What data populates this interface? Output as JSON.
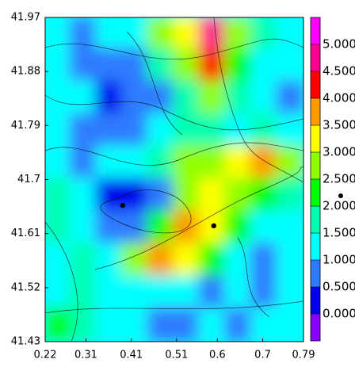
{
  "chart_data": {
    "type": "contour",
    "xlim": [
      0.22,
      0.79
    ],
    "ylim": [
      41.43,
      41.97
    ],
    "xticks": [
      0.22,
      0.31,
      0.41,
      0.51,
      0.6,
      0.7,
      0.79
    ],
    "yticks": [
      41.43,
      41.52,
      41.61,
      41.7,
      41.79,
      41.88,
      41.97
    ],
    "z": [
      [
        1.2,
        0.8,
        1.0,
        1.3,
        2.5,
        3.2,
        4.5,
        2.5,
        1.8,
        1.2
      ],
      [
        1.0,
        0.6,
        0.8,
        0.7,
        1.5,
        2.5,
        4.0,
        2.2,
        1.3,
        1.0
      ],
      [
        1.3,
        1.0,
        0.4,
        0.6,
        0.9,
        1.5,
        2.5,
        1.8,
        1.2,
        0.8
      ],
      [
        1.0,
        0.7,
        0.5,
        0.8,
        1.2,
        1.8,
        1.5,
        1.4,
        1.6,
        1.3
      ],
      [
        1.2,
        0.9,
        1.1,
        1.4,
        1.8,
        2.5,
        2.8,
        3.0,
        3.5,
        2.8
      ],
      [
        1.5,
        1.0,
        0.3,
        0.3,
        0.6,
        2.5,
        3.2,
        2.5,
        2.0,
        1.5
      ],
      [
        1.8,
        1.3,
        0.5,
        0.8,
        2.0,
        3.5,
        3.2,
        2.0,
        1.3,
        1.0
      ],
      [
        1.3,
        1.5,
        1.2,
        2.8,
        3.6,
        3.0,
        2.0,
        1.2,
        0.8,
        1.0
      ],
      [
        1.0,
        1.8,
        1.2,
        1.0,
        1.3,
        1.1,
        0.7,
        1.0,
        0.6,
        1.0
      ],
      [
        2.0,
        1.5,
        1.0,
        1.0,
        0.5,
        0.9,
        1.0,
        0.8,
        1.3,
        1.2
      ]
    ],
    "levels": [
      {
        "value": 0,
        "label": "0.000"
      },
      {
        "value": 0.5,
        "label": "0.500"
      },
      {
        "value": 1,
        "label": "1.000"
      },
      {
        "value": 1.5,
        "label": "1.500"
      },
      {
        "value": 2,
        "label": "2.000"
      },
      {
        "value": 2.5,
        "label": "2.500"
      },
      {
        "value": 3,
        "label": "3.000"
      },
      {
        "value": 3.5,
        "label": "3.500"
      },
      {
        "value": 4,
        "label": "4.000"
      },
      {
        "value": 4.5,
        "label": "4.500"
      },
      {
        "value": 5,
        "label": "5.000"
      }
    ],
    "colors": [
      "#8a00ff",
      "#0000ee",
      "#2f7bff",
      "#00ffff",
      "#00ffb0",
      "#00ff00",
      "#90ff00",
      "#ffff00",
      "#ff9a00",
      "#ff0000",
      "#ff0090",
      "#ff00ff"
    ],
    "markers": {
      "x": [
        0.391,
        0.592
      ],
      "y": [
        41.657,
        41.623
      ]
    }
  }
}
